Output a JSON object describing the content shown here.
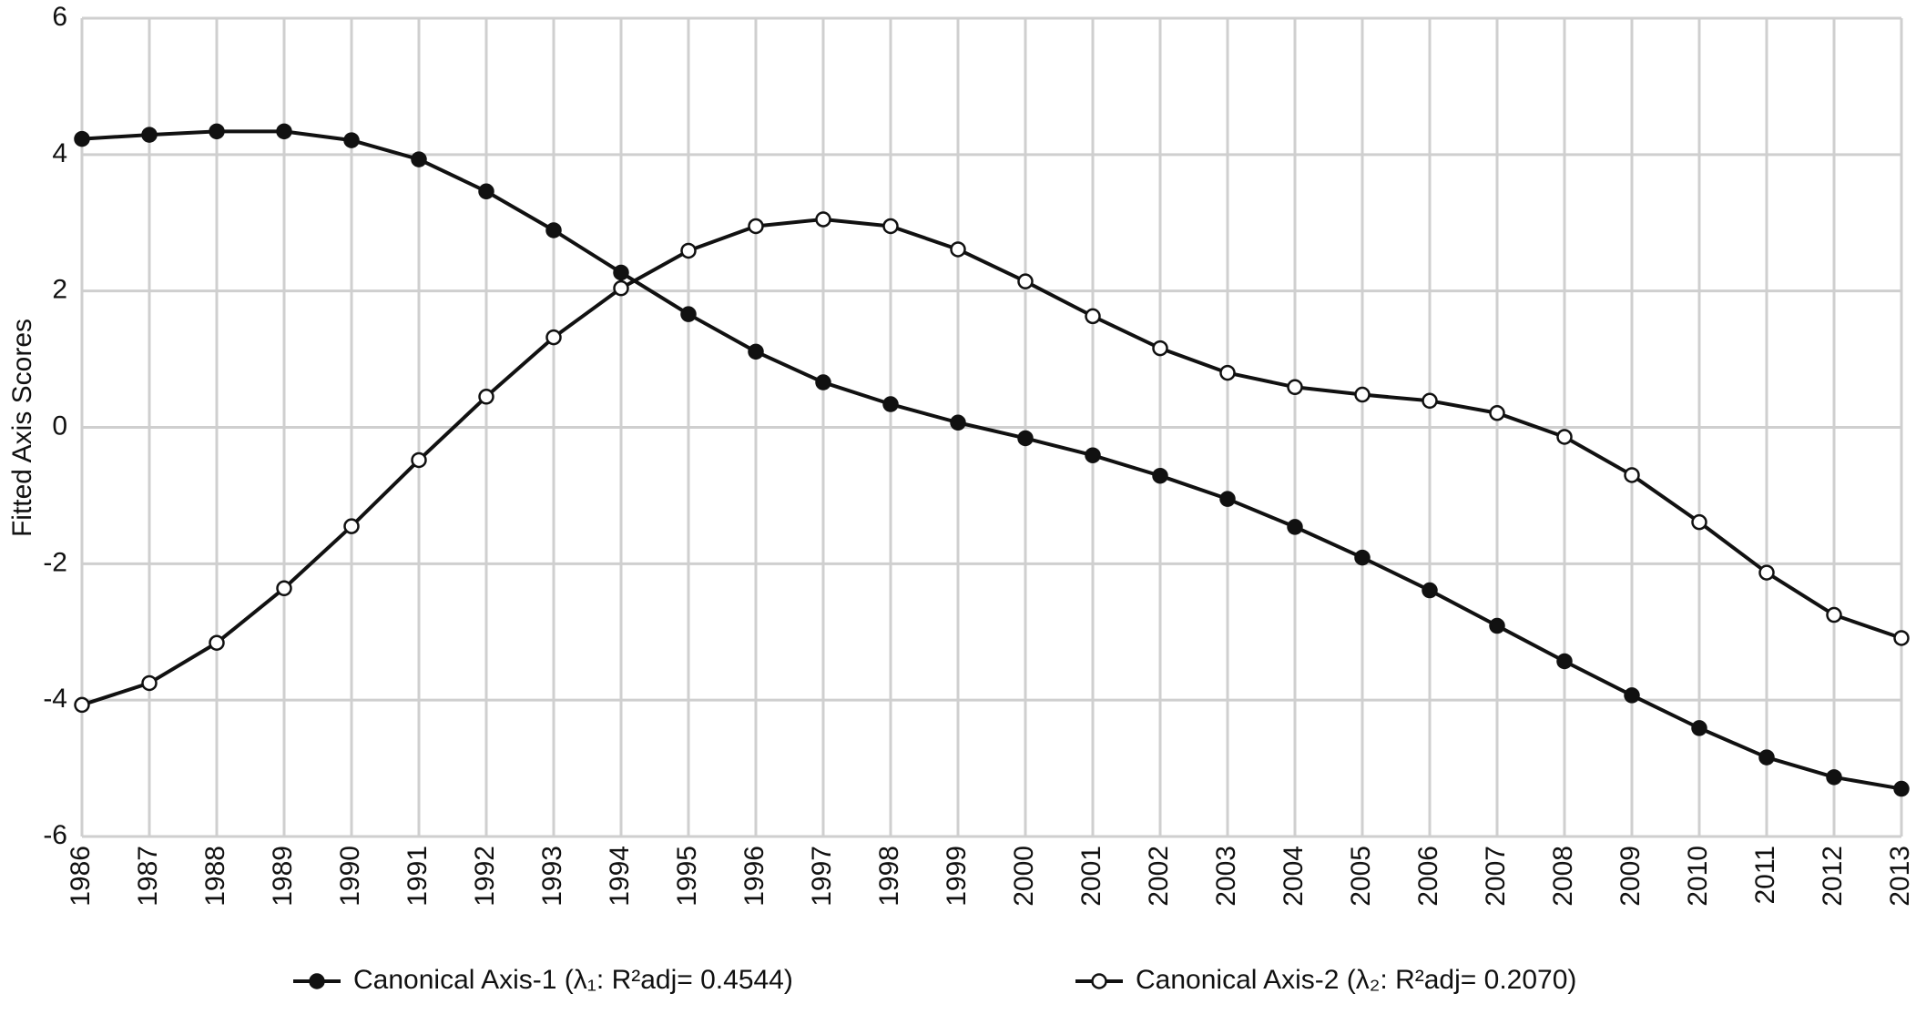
{
  "chart_data": {
    "type": "line",
    "y_label": "Fitted Axis Scores",
    "x": [
      1986,
      1987,
      1988,
      1989,
      1990,
      1991,
      1992,
      1993,
      1994,
      1995,
      1996,
      1997,
      1998,
      1999,
      2000,
      2001,
      2002,
      2003,
      2004,
      2005,
      2006,
      2007,
      2008,
      2009,
      2010,
      2011,
      2012,
      2013
    ],
    "xlim": [
      1986,
      2013
    ],
    "xticks": [
      1986,
      1987,
      1988,
      1989,
      1990,
      1991,
      1992,
      1993,
      1994,
      1995,
      1996,
      1997,
      1998,
      1999,
      2000,
      2001,
      2002,
      2003,
      2004,
      2005,
      2006,
      2007,
      2008,
      2009,
      2010,
      2011,
      2012,
      2013
    ],
    "ylim": [
      -6,
      6
    ],
    "yticks": [
      -6,
      -4,
      -2,
      0,
      2,
      4,
      6
    ],
    "grid": true,
    "legend": "bottom",
    "series": [
      {
        "name": "Canonical Axis-1 (λ₁: R²adj= 0.4544)",
        "color": "#111111",
        "marker": "filled",
        "values": [
          4.23,
          4.29,
          4.34,
          4.34,
          4.21,
          3.93,
          3.46,
          2.89,
          2.27,
          1.66,
          1.11,
          0.66,
          0.34,
          0.07,
          -0.16,
          -0.41,
          -0.71,
          -1.05,
          -1.46,
          -1.91,
          -2.39,
          -2.91,
          -3.43,
          -3.93,
          -4.41,
          -4.84,
          -5.13,
          -5.3
        ]
      },
      {
        "name": "Canonical Axis-2 (λ₂: R²adj= 0.2070)",
        "color": "#111111",
        "marker": "open",
        "values": [
          -4.07,
          -3.75,
          -3.16,
          -2.36,
          -1.45,
          -0.48,
          0.45,
          1.32,
          2.04,
          2.59,
          2.95,
          3.05,
          2.95,
          2.61,
          2.14,
          1.63,
          1.16,
          0.8,
          0.59,
          0.48,
          0.39,
          0.21,
          -0.14,
          -0.7,
          -1.39,
          -2.13,
          -2.75,
          -3.09
        ]
      }
    ]
  }
}
